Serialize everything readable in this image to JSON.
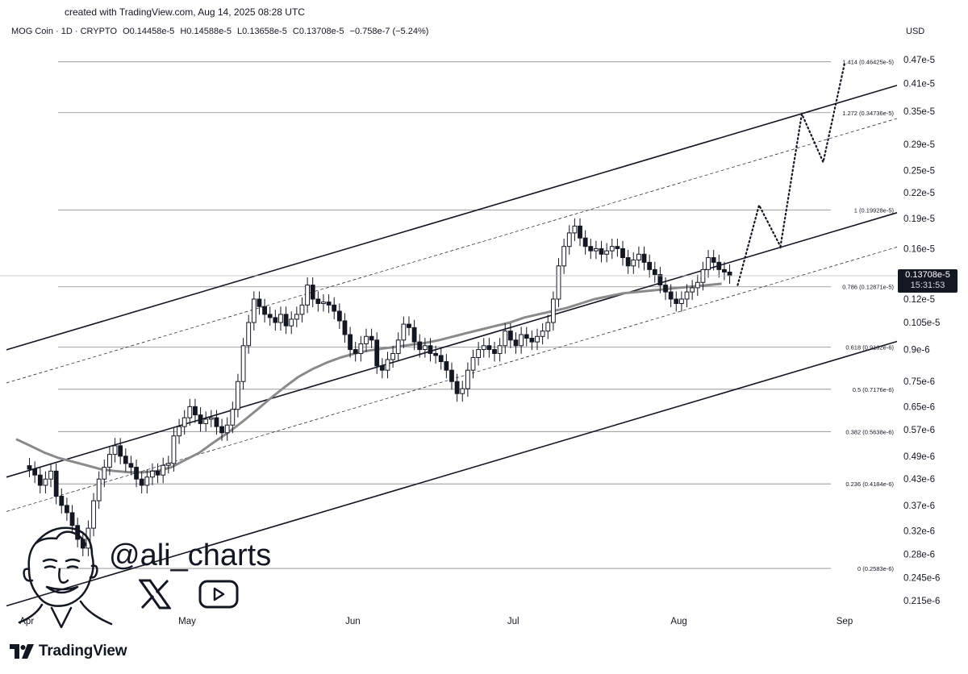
{
  "header": {
    "created": "created with TradingView.com, Aug 14, 2025 08:28 UTC",
    "symbol": "MOG Coin · 1D · CRYPTO",
    "open": "O0.14458e-5",
    "high": "H0.14588e-5",
    "low": "L0.13658e-5",
    "close": "C0.13708e-5",
    "change": "−0.758e-7 (−5.24%)",
    "currency": "USD"
  },
  "price_tag": {
    "price": "0.13708e-5",
    "countdown": "15:31:53"
  },
  "watermark": {
    "handle": "@ali_charts",
    "brand": "TradingView",
    "x_icon": "x-logo-icon",
    "youtube_icon": "youtube-play-icon"
  },
  "colors": {
    "ink": "#131722",
    "ma": "#8a8a8a",
    "grid": "#888888",
    "bg": "#ffffff"
  },
  "chart_data": {
    "type": "candlestick",
    "title": "",
    "yscale": "log",
    "ylim": [
      2.05e-07,
      5e-06
    ],
    "y_ticks": [
      "0.47e-5",
      "0.41e-5",
      "0.35e-5",
      "0.29e-5",
      "0.25e-5",
      "0.22e-5",
      "0.19e-5",
      "0.16e-5",
      "0.14e-5",
      "0.12e-5",
      "0.105e-5",
      "0.9e-6",
      "0.75e-6",
      "0.65e-6",
      "0.57e-6",
      "0.49e-6",
      "0.43e-6",
      "0.37e-6",
      "0.32e-6",
      "0.28e-6",
      "0.245e-6",
      "0.215e-6"
    ],
    "y_tick_values": [
      4.7e-06,
      4.1e-06,
      3.5e-06,
      2.9e-06,
      2.5e-06,
      2.2e-06,
      1.9e-06,
      1.6e-06,
      1.4e-06,
      1.2e-06,
      1.05e-06,
      9e-07,
      7.5e-07,
      6.5e-07,
      5.7e-07,
      4.9e-07,
      4.3e-07,
      3.7e-07,
      3.2e-07,
      2.8e-07,
      2.45e-07,
      2.15e-07
    ],
    "x_ticks": [
      "Apr",
      "May",
      "Jun",
      "Jul",
      "Aug",
      "Sep"
    ],
    "x_tick_days": [
      0,
      30,
      61,
      91,
      122,
      153
    ],
    "fib_levels": [
      {
        "label": "1.414 (0.46425e-5)",
        "value": 4.6425e-06
      },
      {
        "label": "1.272 (0.34736e-5)",
        "value": 3.4736e-06
      },
      {
        "label": "1 (0.19928e-5)",
        "value": 1.9928e-06
      },
      {
        "label": "0.786 (0.12871e-5)",
        "value": 1.2871e-06
      },
      {
        "label": "0.618 (0.9132e-6)",
        "value": 9.132e-07
      },
      {
        "label": "0.5 (0.7176e-6)",
        "value": 7.176e-07
      },
      {
        "label": "0.382 (0.5638e-6)",
        "value": 5.638e-07
      },
      {
        "label": "0.236 (0.4184e-6)",
        "value": 4.184e-07
      },
      {
        "label": "0 (0.2583e-6)",
        "value": 2.583e-07
      }
    ],
    "close_series": [
      4.55e-07,
      4.4e-07,
      4.15e-07,
      4.3e-07,
      4.5e-07,
      3.9e-07,
      3.7e-07,
      3.55e-07,
      3.3e-07,
      3.05e-07,
      2.9e-07,
      3.25e-07,
      3.8e-07,
      4.3e-07,
      4.6e-07,
      4.95e-07,
      5.2e-07,
      4.9e-07,
      4.7e-07,
      4.6e-07,
      4.3e-07,
      4.15e-07,
      4.35e-07,
      4.5e-07,
      4.4e-07,
      4.65e-07,
      4.7e-07,
      5.5e-07,
      5.8e-07,
      6.1e-07,
      6.5e-07,
      6.2e-07,
      5.9e-07,
      6.05e-07,
      6.1e-07,
      5.8e-07,
      5.6e-07,
      5.85e-07,
      6.4e-07,
      7.5e-07,
      9.2e-07,
      1.05e-06,
      1.2e-06,
      1.15e-06,
      1.1e-06,
      1.08e-06,
      1.05e-06,
      1.1e-06,
      1.03e-06,
      1.07e-06,
      1.1e-06,
      1.16e-06,
      1.3e-06,
      1.2e-06,
      1.17e-06,
      1.18e-06,
      1.16e-06,
      1.12e-06,
      1.06e-06,
      9.8e-07,
      9e-07,
      8.8e-07,
      9.3e-07,
      9.7e-07,
      9.5e-07,
      8.2e-07,
      8e-07,
      8.5e-07,
      8.8e-07,
      9.5e-07,
      1.04e-06,
      1.02e-06,
      9.4e-07,
      9e-07,
      9.2e-07,
      8.8e-07,
      8.7e-07,
      8.4e-07,
      8e-07,
      7.5e-07,
      7e-07,
      7.2e-07,
      8e-07,
      8.6e-07,
      9e-07,
      9.2e-07,
      9e-07,
      8.8e-07,
      9.2e-07,
      1e-06,
      9.5e-07,
      9.2e-07,
      9.8e-07,
      9.6e-07,
      9.4e-07,
      9.7e-07,
      1e-06,
      1.05e-06,
      1.2e-06,
      1.45e-06,
      1.62e-06,
      1.75e-06,
      1.82e-06,
      1.7e-06,
      1.62e-06,
      1.58e-06,
      1.6e-06,
      1.55e-06,
      1.58e-06,
      1.62e-06,
      1.6e-06,
      1.52e-06,
      1.45e-06,
      1.5e-06,
      1.55e-06,
      1.48e-06,
      1.42e-06,
      1.38e-06,
      1.3e-06,
      1.25e-06,
      1.2e-06,
      1.17e-06,
      1.2e-06,
      1.25e-06,
      1.28e-06,
      1.32e-06,
      1.42e-06,
      1.52e-06,
      1.48e-06,
      1.42e-06,
      1.4e-06,
      1.371e-06
    ],
    "ma_series": [
      5.4e-07,
      5.2e-07,
      5e-07,
      4.85e-07,
      4.75e-07,
      4.65e-07,
      4.55e-07,
      4.5e-07,
      4.47e-07,
      4.47e-07,
      4.5e-07,
      4.6e-07,
      4.8e-07,
      5e-07,
      5.3e-07,
      5.6e-07,
      5.95e-07,
      6.35e-07,
      6.8e-07,
      7.25e-07,
      7.7e-07,
      8.05e-07,
      8.35e-07,
      8.6e-07,
      8.8e-07,
      8.95e-07,
      9.05e-07,
      9.15e-07,
      9.25e-07,
      9.35e-07,
      9.5e-07,
      9.7e-07,
      9.9e-07,
      1.01e-06,
      1.03e-06,
      1.05e-06,
      1.08e-06,
      1.1e-06,
      1.12e-06,
      1.14e-06,
      1.17e-06,
      1.2e-06,
      1.22e-06,
      1.24e-06,
      1.25e-06,
      1.26e-06,
      1.27e-06,
      1.28e-06,
      1.29e-06,
      1.3e-06,
      1.31e-06
    ],
    "projection": [
      [
        133,
        1.3e-06
      ],
      [
        137,
        2.05e-06
      ],
      [
        141,
        1.62e-06
      ],
      [
        145,
        3.45e-06
      ],
      [
        149,
        2.62e-06
      ],
      [
        153,
        4.6e-06
      ]
    ]
  }
}
